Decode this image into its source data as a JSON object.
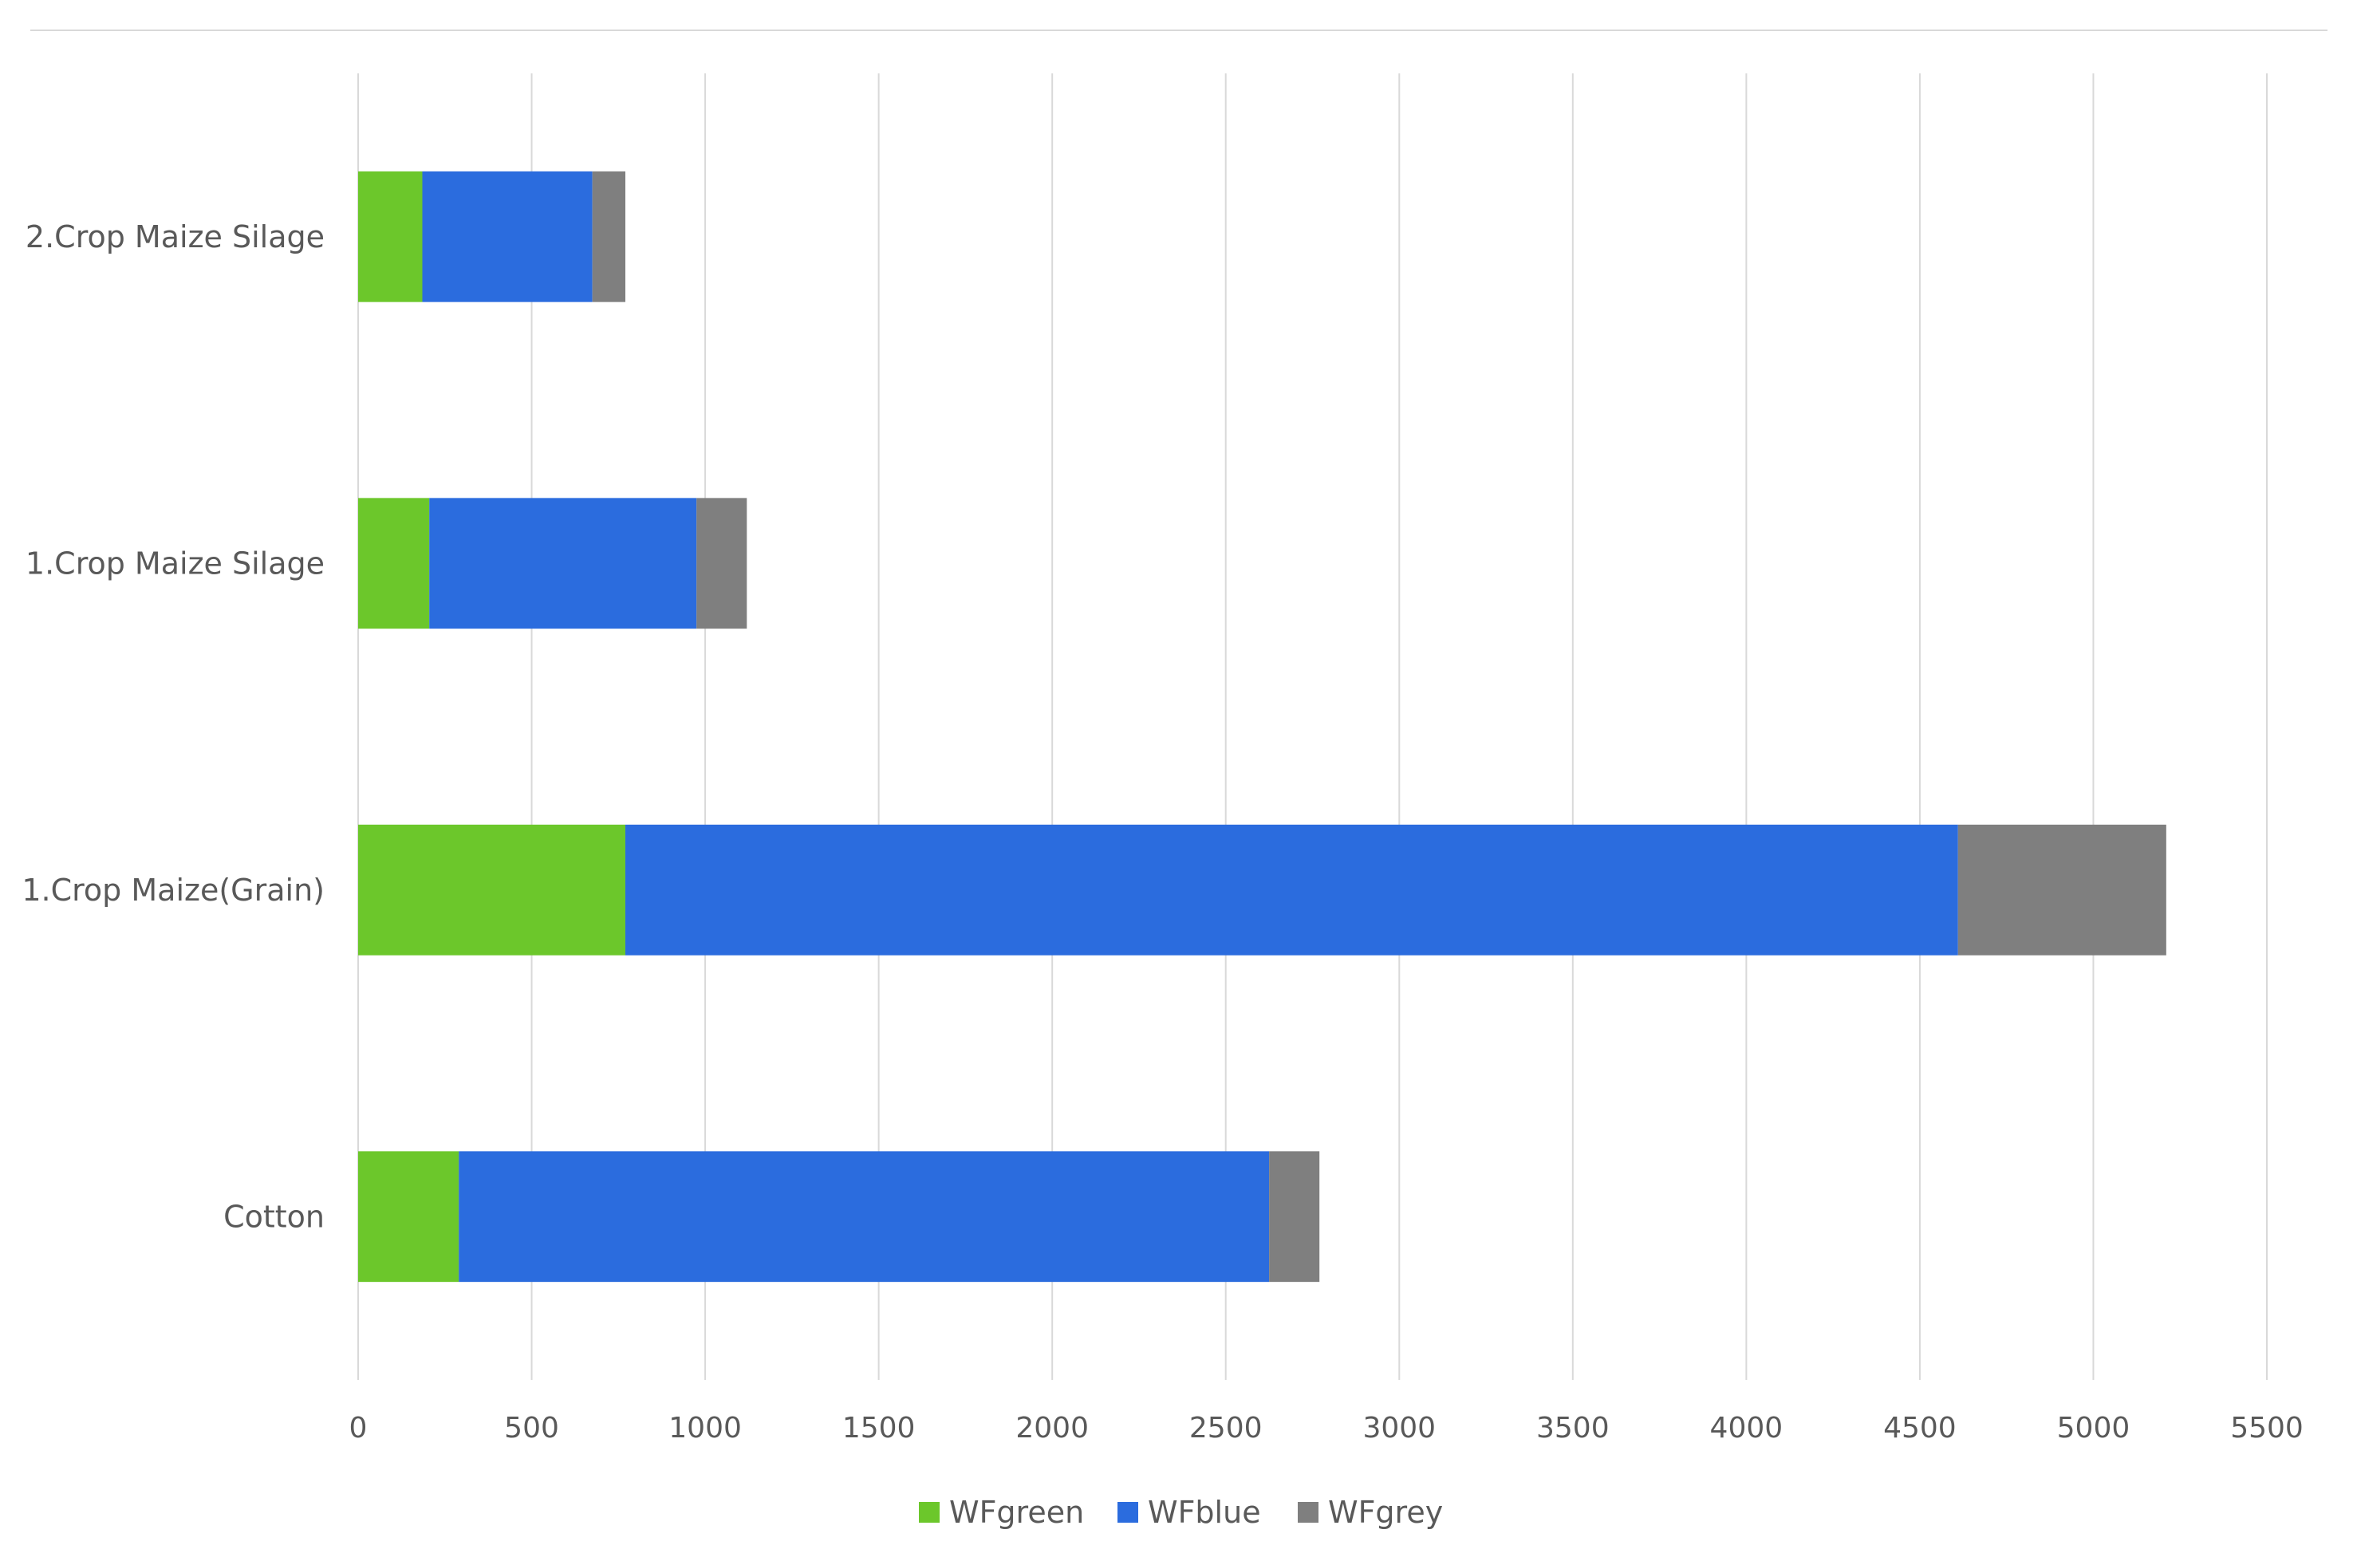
{
  "chart_data": {
    "type": "bar",
    "orientation": "horizontal",
    "stacked": true,
    "categories": [
      "2.Crop Maize Silage",
      "1.Crop Maize Silage",
      "1.Crop Maize(Grain)",
      "Cotton"
    ],
    "series": [
      {
        "name": "WFgreen",
        "color": "#6cc72b",
        "values": [
          185,
          205,
          770,
          290
        ]
      },
      {
        "name": "WFblue",
        "color": "#2b6cde",
        "values": [
          490,
          770,
          3840,
          2335
        ]
      },
      {
        "name": "WFgrey",
        "color": "#7f7f7f",
        "values": [
          95,
          145,
          600,
          145
        ]
      }
    ],
    "xlim": [
      0,
      5500
    ],
    "xticks": [
      "0",
      "500",
      "1000",
      "1500",
      "2000",
      "2500",
      "3000",
      "3500",
      "4000",
      "4500",
      "5000",
      "5500"
    ],
    "grid": "vertical",
    "legend_position": "bottom",
    "title": "",
    "xlabel": "",
    "ylabel": ""
  }
}
